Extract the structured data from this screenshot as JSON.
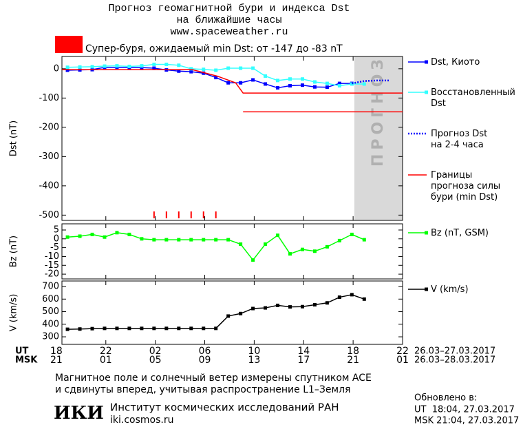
{
  "header": {
    "title_lines": [
      "Прогноз геомагнитной бури и индекса Dst",
      "на ближайшие часы",
      "www.spaceweather.ru"
    ],
    "storm_text": "Супер-буря, ожидаемый min Dst: от -147 до -83 nT",
    "storm_color": "#ff0000"
  },
  "x_axis": {
    "xlim": [
      0.45,
      28
    ],
    "xticks": [
      {
        "value": 0,
        "label": "18"
      },
      {
        "value": 4,
        "label": "22"
      },
      {
        "value": 8,
        "label": "02"
      },
      {
        "value": 12,
        "label": "06"
      },
      {
        "value": 16,
        "label": "10"
      },
      {
        "value": 20,
        "label": "14"
      },
      {
        "value": 24,
        "label": "18"
      },
      {
        "value": 28,
        "label": "22"
      }
    ],
    "x2ticks": [
      {
        "value": 0,
        "label": "21"
      },
      {
        "value": 4,
        "label": "01"
      },
      {
        "value": 8,
        "label": "05"
      },
      {
        "value": 12,
        "label": "09"
      },
      {
        "value": 16,
        "label": "13"
      },
      {
        "value": 20,
        "label": "17"
      },
      {
        "value": 24,
        "label": "21"
      },
      {
        "value": 28,
        "label": "01"
      }
    ],
    "label": "UT",
    "label2": "MSK",
    "range": "26.03–27.03.2017",
    "range2": "26.03–28.03.2017"
  },
  "chart_data": [
    {
      "type": "line",
      "ylabel": "Dst (nT)",
      "ylim": [
        -518,
        42
      ],
      "yticks": [
        0,
        -100,
        -200,
        -300,
        -400,
        -500
      ],
      "forecast_region": {
        "label": "ПРОГНОЗ",
        "xrange": [
          24.1,
          28
        ],
        "color": "#d9d9d9"
      },
      "storm_marks": [
        7.9,
        8.9,
        9.9,
        10.9,
        11.9,
        12.9
      ],
      "series": [
        {
          "name": "Dst, Киото",
          "color": "#0000ff",
          "marker": "square",
          "x": [
            0.9,
            1.9,
            2.9,
            3.9,
            4.9,
            5.9,
            6.9,
            7.9,
            8.9,
            9.9,
            10.9,
            11.9,
            12.9,
            13.9,
            14.9,
            15.9,
            16.9,
            17.9,
            18.9,
            19.9,
            20.9,
            21.9,
            22.9,
            23.9
          ],
          "values": [
            -5,
            -4,
            -3,
            5,
            5,
            4,
            4,
            2,
            -4,
            -8,
            -10,
            -15,
            -30,
            -48,
            -48,
            -38,
            -52,
            -65,
            -58,
            -56,
            -62,
            -63,
            -50,
            -50
          ]
        },
        {
          "name": "Восстановленный\nDst",
          "color": "#33ffff",
          "marker": "square",
          "x": [
            0.9,
            1.9,
            2.9,
            3.9,
            4.9,
            5.9,
            6.9,
            7.9,
            8.9,
            9.9,
            10.9,
            11.9,
            12.9,
            13.9,
            14.9,
            15.9,
            16.9,
            17.9,
            18.9,
            19.9,
            20.9,
            21.9,
            22.9,
            23.9,
            24.9
          ],
          "values": [
            5,
            6,
            7,
            9,
            10,
            8,
            10,
            15,
            15,
            12,
            0,
            -2,
            -5,
            2,
            2,
            2,
            -25,
            -40,
            -35,
            -35,
            -45,
            -50,
            -58,
            -52,
            -52
          ]
        },
        {
          "name": "Прогноз Dst\nна 2-4 часа",
          "color": "#0000ff",
          "dash": "dotted",
          "x": [
            23.9,
            24.9,
            25.9,
            26.9
          ],
          "values": [
            -50,
            -42,
            -40,
            -40
          ]
        },
        {
          "name": "Границы\nпрогноза силы\nбури (min Dst)",
          "color": "#ff0000",
          "x": [
            0.45,
            11,
            13,
            14.5,
            15.1,
            28
          ],
          "values": [
            -3,
            -3,
            -25,
            -48,
            -83,
            -83
          ]
        },
        {
          "color": "#ff0000",
          "x": [
            15.1,
            28
          ],
          "values": [
            -147,
            -147
          ]
        }
      ]
    },
    {
      "type": "line",
      "ylabel": "Bz (nT)",
      "ylim": [
        -22.7,
        8.5
      ],
      "yticks": [
        5,
        0,
        -5,
        -10,
        -15,
        -20
      ],
      "series": [
        {
          "name": "Bz (nT, GSM)",
          "color": "#00ff00",
          "marker": "square",
          "x": [
            0.9,
            1.9,
            2.9,
            3.9,
            4.9,
            5.9,
            6.9,
            7.9,
            8.9,
            9.9,
            10.9,
            11.9,
            12.9,
            13.9,
            14.9,
            15.9,
            16.9,
            17.9,
            18.9,
            19.9,
            20.9,
            21.9,
            22.9,
            23.9,
            24.9
          ],
          "values": [
            1,
            1.5,
            2.5,
            1,
            3.5,
            2.5,
            0,
            -0.5,
            -0.5,
            -0.5,
            -0.5,
            -0.5,
            -0.5,
            -0.5,
            -3,
            -12,
            -3,
            2,
            -8.5,
            -6,
            -7,
            -4.5,
            -1,
            2.5,
            -0.5
          ]
        }
      ]
    },
    {
      "type": "line",
      "ylabel": "V (km/s)",
      "ylim": [
        240,
        744
      ],
      "yticks": [
        700,
        600,
        500,
        400,
        300
      ],
      "series": [
        {
          "name": "V (km/s)",
          "color": "#000000",
          "marker": "square",
          "x": [
            0.9,
            1.9,
            2.9,
            3.9,
            4.9,
            5.9,
            6.9,
            7.9,
            8.9,
            9.9,
            10.9,
            11.9,
            12.9,
            13.9,
            14.9,
            15.9,
            16.9,
            17.9,
            18.9,
            19.9,
            20.9,
            21.9,
            22.9,
            23.9,
            24.9
          ],
          "values": [
            360,
            362,
            365,
            367,
            367,
            367,
            367,
            367,
            367,
            367,
            367,
            367,
            367,
            465,
            485,
            525,
            530,
            550,
            538,
            540,
            555,
            570,
            615,
            635,
            600
          ]
        }
      ]
    }
  ],
  "footer": {
    "note_lines": [
      "Магнитное поле и солнечный ветер измерены спутником ACE",
      "и сдвинуты вперед, учитывая распространение L1–Земля"
    ],
    "logo": "ИКИ",
    "institute": "Институт космических исследований РАН",
    "site": "iki.cosmos.ru",
    "updated_title": "Обновлено в:",
    "updated_ut": "UT  18:04, 27.03.2017",
    "updated_msk": "MSK 21:04, 27.03.2017"
  }
}
